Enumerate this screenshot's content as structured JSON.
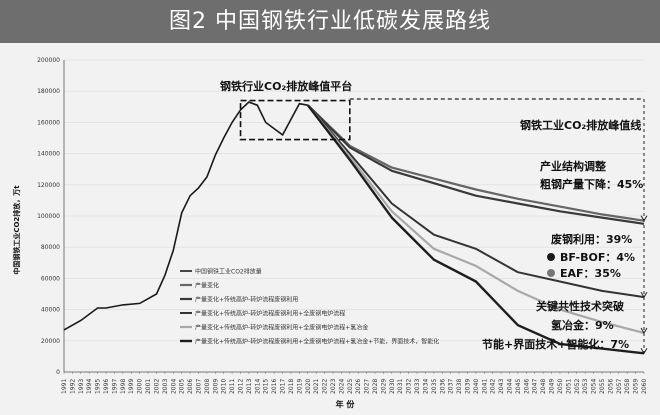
{
  "header": {
    "title": "图2  中国钢铁行业低碳发展路线"
  },
  "annotations": {
    "platform": "钢铁行业CO₂排放峰值平台",
    "peak_line": "钢铁工业CO₂排放峰值线",
    "structure_1": "产业结构调整",
    "structure_2": "粗钢产量下降：45%",
    "scrap_1": "废钢利用：39%",
    "scrap_2": "BF-BOF：4%",
    "scrap_3": "EAF：35%",
    "breakthrough_1": "关键共性技术突破",
    "breakthrough_2": "氢冶金：9%",
    "efficiency": "节能+界面技术+智能化：7%"
  },
  "colors": {
    "header_bg": "#6e6e6e",
    "plot_bg": "#f2f2f2",
    "series": [
      "#1a1a1a",
      "#707070",
      "#3a3a3a",
      "#555555",
      "#a0a0a0",
      "#222222"
    ]
  },
  "chart_data": {
    "type": "line",
    "title": "",
    "xlabel": "年 份",
    "ylabel": "中国钢铁工业CO2排放，万t",
    "ylim": [
      0,
      200000
    ],
    "yticks": [
      0,
      20000,
      40000,
      60000,
      80000,
      100000,
      120000,
      140000,
      160000,
      180000,
      200000
    ],
    "ytick_labels": [
      "0",
      "20000",
      "40000",
      "60000",
      "80000",
      "100000",
      "120000",
      "140000",
      "160000",
      "180000",
      "200000"
    ],
    "xlim": [
      1991,
      2060
    ],
    "legend_position": "lower-left",
    "historical": {
      "name": "中国钢铁工业CO2排放量",
      "x": [
        1991,
        1993,
        1995,
        1996,
        1998,
        2000,
        2002,
        2003,
        2004,
        2005,
        2006,
        2007,
        2008,
        2009,
        2010,
        2011,
        2012,
        2013,
        2014,
        2015,
        2016,
        2017,
        2018,
        2019,
        2020
      ],
      "y": [
        27000,
        33000,
        41000,
        41000,
        43000,
        44000,
        50000,
        62000,
        78000,
        102000,
        113000,
        118000,
        125000,
        139000,
        150000,
        160000,
        168000,
        173000,
        171000,
        160000,
        156000,
        152000,
        162000,
        172000,
        171000
      ]
    },
    "series": [
      {
        "name": "产量变化",
        "x": [
          2020,
          2025,
          2030,
          2035,
          2040,
          2045,
          2050,
          2055,
          2060
        ],
        "y": [
          171000,
          145000,
          131000,
          124000,
          117000,
          111000,
          106000,
          101000,
          97000
        ]
      },
      {
        "name": "产量变化+传统高炉-转炉流程废钢利用",
        "x": [
          2020,
          2025,
          2030,
          2035,
          2040,
          2045,
          2050,
          2055,
          2060
        ],
        "y": [
          171000,
          144000,
          129000,
          121000,
          113000,
          108000,
          103000,
          99000,
          95000
        ]
      },
      {
        "name": "产量变化+传统高炉-转炉流程废钢利用+全废钢电炉流程",
        "x": [
          2020,
          2025,
          2030,
          2035,
          2040,
          2045,
          2050,
          2055,
          2060
        ],
        "y": [
          171000,
          140000,
          108000,
          88000,
          79000,
          64000,
          58000,
          52000,
          48000
        ]
      },
      {
        "name": "产量变化+传统高炉-转炉流程废钢利用+全废钢电炉流程+氢冶金",
        "x": [
          2020,
          2025,
          2030,
          2035,
          2040,
          2045,
          2050,
          2055,
          2060
        ],
        "y": [
          171000,
          138000,
          103000,
          79000,
          68000,
          52000,
          40000,
          32000,
          25000
        ]
      },
      {
        "name": "产量变化+传统高炉-转炉流程废钢利用+全废钢电炉流程+氢冶金+节能，界面技术，智能化",
        "x": [
          2020,
          2025,
          2030,
          2035,
          2040,
          2045,
          2050,
          2055,
          2060
        ],
        "y": [
          171000,
          136000,
          99000,
          72000,
          58000,
          30000,
          18000,
          15000,
          12000
        ]
      }
    ],
    "peak_value": 175000,
    "platform_box": {
      "x": [
        2012,
        2025
      ],
      "y": [
        149000,
        174000
      ]
    }
  }
}
